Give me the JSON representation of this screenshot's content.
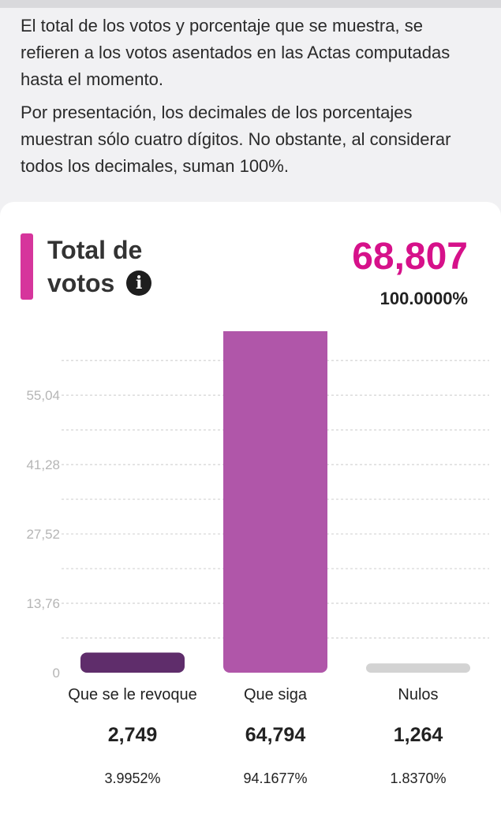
{
  "notes": [
    "El total de los votos y porcentaje que se muestra, se refieren a los votos asentados en las Actas computadas hasta el momento.",
    "Por presentación, los decimales de los porcentajes muestran sólo cuatro dígitos. No obstante, al considerar todos los decimales, suman 100%."
  ],
  "summary": {
    "title_line1": "Total de",
    "title_line2": "votos",
    "info_icon": "info-icon",
    "total_votes": "68,807",
    "total_percent": "100.0000%",
    "accent_color": "#d6359c",
    "total_color": "#d6118a"
  },
  "chart_data": {
    "type": "bar",
    "categories": [
      "Que se le revoque",
      "Que siga",
      "Nulos"
    ],
    "values": [
      2749,
      64794,
      1264
    ],
    "value_labels": [
      "2,749",
      "64,794",
      "1,264"
    ],
    "percent_labels": [
      "3.9952%",
      "94.1677%",
      "1.8370%"
    ],
    "colors": [
      "#5f2d6b",
      "#b056a9",
      "#d3d3d3"
    ],
    "percent_values": [
      3.9952,
      94.1677,
      1.837
    ],
    "yticks": [
      "0",
      "13,76",
      "27,52",
      "41,28",
      "55,04"
    ],
    "ytick_values": [
      0,
      13.76,
      27.52,
      41.28,
      55.04
    ],
    "ylim": [
      0,
      65
    ],
    "grid": true,
    "legend": "none"
  }
}
